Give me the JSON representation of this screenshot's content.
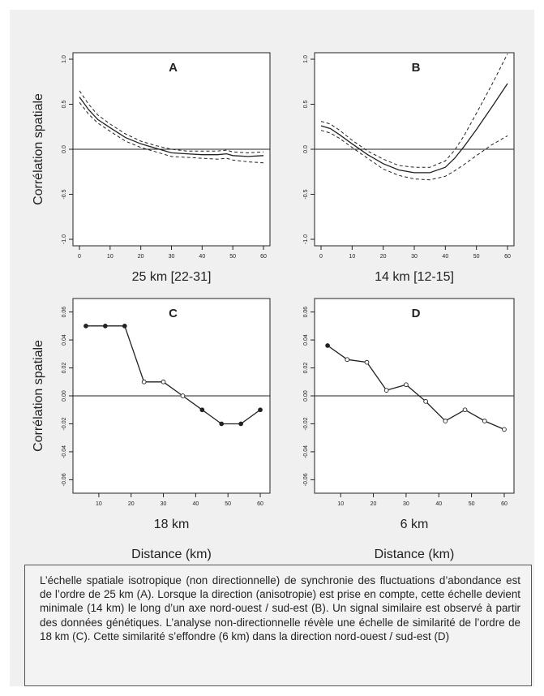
{
  "colors": {
    "panel_bg": "#f0f0f0",
    "plot_bg": "#ffffff",
    "ink": "#222222"
  },
  "labels": {
    "ylabel": "Corrélation spatiale",
    "xlabel": "Distance (km)"
  },
  "chart_data": [
    {
      "id": "A",
      "type": "line",
      "title": "A",
      "subtitle": "25 km [22-31]",
      "ylabel": "Corrélation spatiale",
      "xlim": [
        0,
        60
      ],
      "ylim": [
        -1.0,
        1.0
      ],
      "xticks": [
        "0",
        "10",
        "20",
        "30",
        "40",
        "50",
        "60"
      ],
      "yticks": [
        "-1.0",
        "-0.5",
        "0.0",
        "0.5",
        "1.0"
      ],
      "reference_line": 0,
      "series": [
        {
          "style": "solid",
          "x": [
            0,
            3,
            6,
            10,
            15,
            20,
            25,
            30,
            35,
            40,
            45,
            48,
            50,
            55,
            60
          ],
          "y": [
            0.58,
            0.44,
            0.33,
            0.24,
            0.13,
            0.06,
            0.01,
            -0.04,
            -0.05,
            -0.06,
            -0.06,
            -0.05,
            -0.07,
            -0.08,
            -0.07
          ]
        },
        {
          "style": "dashed",
          "x": [
            0,
            3,
            6,
            10,
            15,
            20,
            25,
            30,
            35,
            40,
            45,
            48,
            50,
            55,
            60
          ],
          "y": [
            0.65,
            0.5,
            0.38,
            0.28,
            0.17,
            0.09,
            0.04,
            0.0,
            -0.02,
            -0.02,
            -0.02,
            -0.01,
            -0.03,
            -0.04,
            -0.03
          ]
        },
        {
          "style": "dashed",
          "x": [
            0,
            3,
            6,
            10,
            15,
            20,
            25,
            30,
            35,
            40,
            45,
            48,
            50,
            55,
            60
          ],
          "y": [
            0.52,
            0.39,
            0.29,
            0.2,
            0.09,
            0.02,
            -0.03,
            -0.08,
            -0.09,
            -0.1,
            -0.11,
            -0.1,
            -0.12,
            -0.14,
            -0.15
          ]
        }
      ]
    },
    {
      "id": "B",
      "type": "line",
      "title": "B",
      "subtitle": "14 km [12-15]",
      "xlim": [
        0,
        60
      ],
      "ylim": [
        -1.0,
        1.0
      ],
      "xticks": [
        "0",
        "10",
        "20",
        "30",
        "40",
        "50",
        "60"
      ],
      "yticks": [
        "-1.0",
        "-0.5",
        "0.0",
        "0.5",
        "1.0"
      ],
      "reference_line": 0,
      "series": [
        {
          "style": "solid",
          "x": [
            0,
            3,
            6,
            10,
            15,
            20,
            25,
            30,
            35,
            40,
            43,
            46,
            50,
            55,
            60
          ],
          "y": [
            0.26,
            0.23,
            0.16,
            0.06,
            -0.06,
            -0.16,
            -0.23,
            -0.26,
            -0.26,
            -0.2,
            -0.1,
            0.03,
            0.22,
            0.47,
            0.73
          ]
        },
        {
          "style": "dashed",
          "x": [
            0,
            3,
            6,
            10,
            15,
            20,
            25,
            30,
            35,
            40,
            43,
            46,
            50,
            55,
            60
          ],
          "y": [
            0.31,
            0.28,
            0.21,
            0.1,
            -0.02,
            -0.11,
            -0.18,
            -0.2,
            -0.2,
            -0.13,
            -0.01,
            0.15,
            0.4,
            0.72,
            1.06
          ]
        },
        {
          "style": "dashed",
          "x": [
            0,
            3,
            6,
            10,
            15,
            20,
            25,
            30,
            35,
            40,
            43,
            46,
            50,
            55,
            60
          ],
          "y": [
            0.21,
            0.18,
            0.12,
            0.02,
            -0.1,
            -0.22,
            -0.29,
            -0.33,
            -0.34,
            -0.3,
            -0.24,
            -0.17,
            -0.07,
            0.05,
            0.15
          ]
        }
      ]
    },
    {
      "id": "C",
      "type": "line",
      "title": "C",
      "subtitle": "18 km",
      "xlabel": "Distance (km)",
      "ylabel": "Corrélation spatiale",
      "xlim": [
        4,
        61
      ],
      "ylim": [
        -0.065,
        0.065
      ],
      "xticks": [
        "10",
        "20",
        "30",
        "40",
        "50",
        "60"
      ],
      "yticks": [
        "-0.06",
        "-0.04",
        "-0.02",
        "0.00",
        "0.02",
        "0.04",
        "0.06"
      ],
      "reference_line": 0,
      "series": [
        {
          "style": "solid-markers",
          "x": [
            6,
            12,
            18,
            24,
            30,
            36,
            42,
            48,
            54,
            60
          ],
          "y": [
            0.05,
            0.05,
            0.05,
            0.01,
            0.01,
            0.0,
            -0.01,
            -0.02,
            -0.02,
            -0.01
          ],
          "filled": [
            true,
            true,
            true,
            false,
            false,
            false,
            true,
            true,
            true,
            true
          ]
        }
      ]
    },
    {
      "id": "D",
      "type": "line",
      "title": "D",
      "subtitle": "6 km",
      "xlabel": "Distance (km)",
      "xlim": [
        4,
        61
      ],
      "ylim": [
        -0.065,
        0.065
      ],
      "xticks": [
        "10",
        "20",
        "30",
        "40",
        "50",
        "60"
      ],
      "yticks": [
        "-0.06",
        "-0.04",
        "-0.02",
        "0.00",
        "0.02",
        "0.04",
        "0.06"
      ],
      "reference_line": 0,
      "series": [
        {
          "style": "solid-markers",
          "x": [
            6,
            12,
            18,
            24,
            30,
            36,
            42,
            48,
            54,
            60
          ],
          "y": [
            0.036,
            0.026,
            0.024,
            0.004,
            0.008,
            -0.004,
            -0.018,
            -0.01,
            -0.018,
            -0.024
          ],
          "filled": [
            true,
            false,
            false,
            false,
            false,
            false,
            false,
            false,
            false,
            false
          ]
        }
      ]
    }
  ],
  "caption": "L’échelle spatiale isotropique (non directionnelle) de synchronie des fluctuations d’abondance est de l’ordre de 25 km (A). Lorsque la direction (anisotropie) est prise en compte, cette échelle devient minimale (14 km) le long d’un axe nord-ouest / sud-est (B). Un signal similaire est observé à partir des données génétiques. L’analyse non-directionnelle révèle une échelle de similarité de l’ordre de 18 km (C). Cette similarité s’effondre (6 km) dans la direction nord-ouest / sud-est (D)"
}
